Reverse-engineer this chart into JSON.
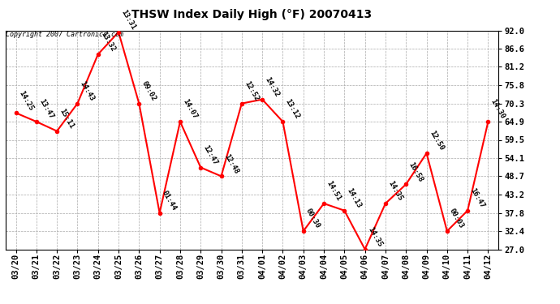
{
  "title": "THSW Index Daily High (°F) 20070413",
  "copyright": "Copyright 2007 Cartronics.com",
  "dates": [
    "03/20",
    "03/21",
    "03/22",
    "03/23",
    "03/24",
    "03/25",
    "03/26",
    "03/27",
    "03/28",
    "03/29",
    "03/30",
    "03/31",
    "04/01",
    "04/02",
    "04/03",
    "04/04",
    "04/05",
    "04/06",
    "04/07",
    "04/08",
    "04/09",
    "04/10",
    "04/11",
    "04/12"
  ],
  "values": [
    67.5,
    64.9,
    62.1,
    70.3,
    84.9,
    91.5,
    70.3,
    37.8,
    64.9,
    51.3,
    48.7,
    70.3,
    71.5,
    64.9,
    32.4,
    40.6,
    38.5,
    27.0,
    40.6,
    46.3,
    55.5,
    32.4,
    38.5,
    64.9
  ],
  "labels": [
    "14:25",
    "13:47",
    "15:11",
    "14:43",
    "13:32",
    "13:31",
    "09:02",
    "01:44",
    "14:07",
    "12:47",
    "12:48",
    "12:52",
    "14:32",
    "13:12",
    "00:30",
    "14:51",
    "14:13",
    "14:35",
    "14:35",
    "16:58",
    "12:50",
    "00:03",
    "16:47",
    "14:30"
  ],
  "ylim": [
    27.0,
    92.0
  ],
  "yticks": [
    27.0,
    32.4,
    37.8,
    43.2,
    48.7,
    54.1,
    59.5,
    64.9,
    70.3,
    75.8,
    81.2,
    86.6,
    92.0
  ],
  "line_color": "#ff0000",
  "marker_color": "#ff0000",
  "bg_color": "#ffffff",
  "plot_bg_color": "#ffffff",
  "grid_color": "#aaaaaa",
  "title_fontsize": 10,
  "label_fontsize": 6.5,
  "tick_fontsize": 7.5
}
